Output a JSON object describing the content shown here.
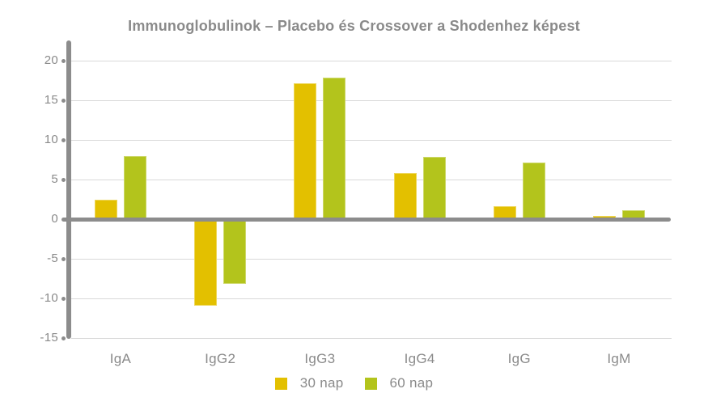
{
  "title": "Immunoglobulinok – Placebo és Crossover a Shodenhez képest",
  "chart_data": {
    "type": "bar",
    "title": "Immunoglobulinok – Placebo és Crossover a Shodenhez képest",
    "categories": [
      "IgA",
      "IgG2",
      "IgG3",
      "IgG4",
      "IgG",
      "IgM"
    ],
    "series": [
      {
        "name": "30 nap",
        "color": "#e3c000",
        "values": [
          2.4,
          -10.9,
          17.1,
          5.8,
          1.6,
          0.4
        ]
      },
      {
        "name": "60 nap",
        "color": "#b3c41c",
        "values": [
          8.0,
          -8.2,
          17.9,
          7.9,
          7.1,
          1.1
        ]
      }
    ],
    "yticks": [
      20,
      15,
      10,
      5,
      0,
      -5,
      -10,
      -15
    ],
    "ylim": [
      -15,
      22.5
    ],
    "xlabel": "",
    "ylabel": "",
    "grid": true,
    "legend_position": "bottom"
  },
  "colors": {
    "background": "#ffffff",
    "axis": "#8c8c8c",
    "gridline": "#d9d9d9",
    "text": "#8a8a8a",
    "series_30nap": "#e3c000",
    "series_60nap": "#b3c41c"
  }
}
